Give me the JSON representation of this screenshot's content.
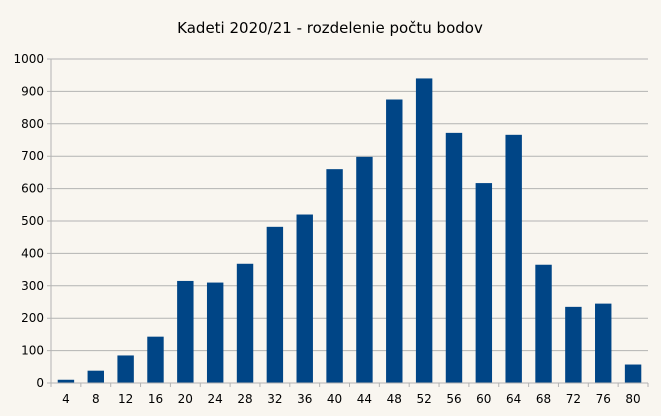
{
  "chart_data": {
    "type": "bar",
    "title": "Kadeti 2020/21 - rozdelenie počtu bodov",
    "xlabel": "",
    "ylabel": "",
    "categories": [
      "4",
      "8",
      "12",
      "16",
      "20",
      "24",
      "28",
      "32",
      "36",
      "40",
      "44",
      "48",
      "52",
      "56",
      "60",
      "64",
      "68",
      "72",
      "76",
      "80"
    ],
    "values": [
      10,
      38,
      85,
      143,
      315,
      310,
      368,
      482,
      520,
      660,
      698,
      875,
      940,
      772,
      617,
      766,
      365,
      235,
      245,
      57
    ],
    "ylim": [
      0,
      1000
    ],
    "yticks": [
      0,
      100,
      200,
      300,
      400,
      500,
      600,
      700,
      800,
      900,
      1000
    ],
    "grid": true,
    "legend": "none",
    "bar_color": "#004586",
    "grid_color": "#b3b3b3",
    "background_color": "#f9f6f0"
  }
}
